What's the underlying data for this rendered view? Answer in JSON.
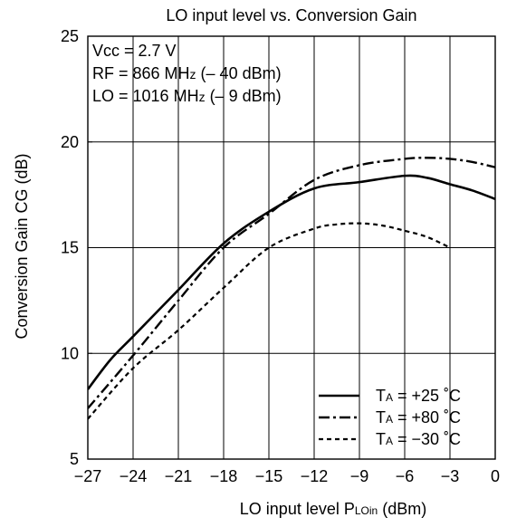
{
  "chart_data": {
    "type": "line",
    "title": "LO input level vs. Conversion Gain",
    "xlabel": {
      "main": "LO input level P",
      "sub": "LOin",
      "unit": " (dBm)"
    },
    "ylabel": "Conversion Gain CG (dB)",
    "xlim": [
      -27,
      0
    ],
    "ylim": [
      5,
      25
    ],
    "x_ticks": [
      -27,
      -24,
      -21,
      -18,
      -15,
      -12,
      -9,
      -6,
      -3,
      0
    ],
    "x_tick_labels": [
      "−27",
      "−24",
      "−21",
      "−18",
      "−15",
      "−12",
      "−9",
      "−6",
      "−3",
      "0"
    ],
    "y_ticks": [
      5,
      10,
      15,
      20,
      25
    ],
    "y_tick_labels": [
      "5",
      "10",
      "15",
      "20",
      "25"
    ],
    "grid": true,
    "legend_position": "bottom-right",
    "annotations": [
      {
        "segments": [
          {
            "text": "Vcc = 2.7 V",
            "size": "normal"
          }
        ]
      },
      {
        "segments": [
          {
            "text": "RF = 866 MH",
            "size": "normal"
          },
          {
            "text": "z",
            "size": "small"
          },
          {
            "text": " (– 40 dBm)",
            "size": "normal"
          }
        ]
      },
      {
        "segments": [
          {
            "text": "LO = 1016 MH",
            "size": "normal"
          },
          {
            "text": "z",
            "size": "small"
          },
          {
            "text": " (– 9 dBm)",
            "size": "normal"
          }
        ]
      }
    ],
    "series": [
      {
        "name": "T",
        "name_sub": "A",
        "name_rest": " = +25 ˚C",
        "style": "solid",
        "x": [
          -27,
          -25.5,
          -24,
          -21,
          -18,
          -15,
          -12,
          -9,
          -6,
          -4.5,
          -3,
          -1.5,
          0
        ],
        "y": [
          8.3,
          9.7,
          10.8,
          13.0,
          15.2,
          16.7,
          17.8,
          18.1,
          18.4,
          18.3,
          18.0,
          17.7,
          17.3
        ]
      },
      {
        "name": "T",
        "name_sub": "A",
        "name_rest": " = +80 ˚C",
        "style": "dashdot",
        "x": [
          -27,
          -24,
          -21,
          -18,
          -15,
          -12,
          -9,
          -6,
          -4.5,
          -3,
          -1.5,
          0
        ],
        "y": [
          7.4,
          9.9,
          12.5,
          15.0,
          16.6,
          18.2,
          18.9,
          19.2,
          19.25,
          19.2,
          19.05,
          18.8
        ]
      },
      {
        "name": "T",
        "name_sub": "A",
        "name_rest": " = −30 ˚C",
        "style": "dashed",
        "x": [
          -27,
          -24,
          -21,
          -18,
          -15,
          -12,
          -10.5,
          -9,
          -7.5,
          -6,
          -4.5,
          -3
        ],
        "y": [
          6.9,
          9.3,
          11.1,
          13.1,
          15.0,
          15.9,
          16.1,
          16.15,
          16.05,
          15.8,
          15.5,
          15.0
        ]
      }
    ]
  }
}
